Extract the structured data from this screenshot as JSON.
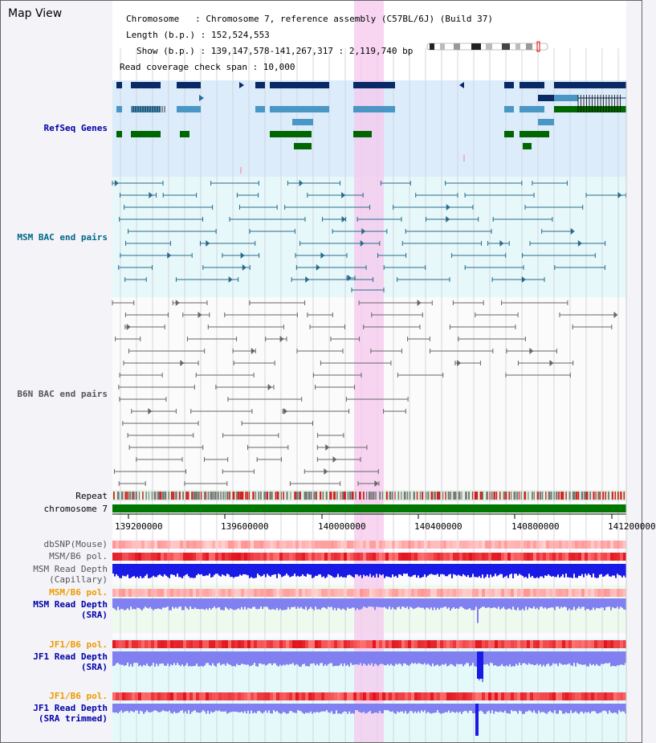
{
  "header": {
    "title": "Map View",
    "chromosome_line": "Chromosome   : Chromosome 7, reference assembly (C57BL/6J) (Build 37)",
    "length_line": "Length (b.p.) : 152,524,553",
    "show_line": "Show (b.p.) : 139,147,578-141,267,317 : 2,119,740 bp",
    "coverage_line": "Read coverage check span : 10,000"
  },
  "tracks": {
    "refseq": "RefSeq Genes",
    "msm_bac": "MSM BAC end pairs",
    "b6n_bac": "B6N BAC end pairs",
    "repeat": "Repeat",
    "chromosome": "chromosome 7",
    "dbsnp": "dbSNP(Mouse)",
    "msm_b6_pol_1": "MSM/B6 pol.",
    "msm_depth_cap_1": "MSM Read Depth",
    "msm_depth_cap_2": "(Capillary)",
    "msm_b6_pol_2": "MSM/B6 pol.",
    "msm_depth_sra_1": "MSM Read Depth",
    "msm_depth_sra_2": "(SRA)",
    "jf1_b6_pol_1": "JF1/B6 pol.",
    "jf1_depth_sra_1": "JF1 Read Depth",
    "jf1_depth_sra_2": "(SRA)",
    "jf1_b6_pol_2": "JF1/B6 pol.",
    "jf1_depth_trim_1": "JF1 Read Depth",
    "jf1_depth_trim_2": "(SRA trimmed)"
  },
  "axis_ticks": [
    "139200000",
    "139600000",
    "140000000",
    "140400000",
    "140800000",
    "141200000"
  ],
  "colors": {
    "refseq_label": "#0000aa",
    "msm_label": "#006688",
    "b6n_label": "#555555",
    "pol_label": "#ee9900",
    "depth_label": "#0000aa",
    "highlight": "#f8d0f0",
    "chromosome_bar": "#007700"
  }
}
